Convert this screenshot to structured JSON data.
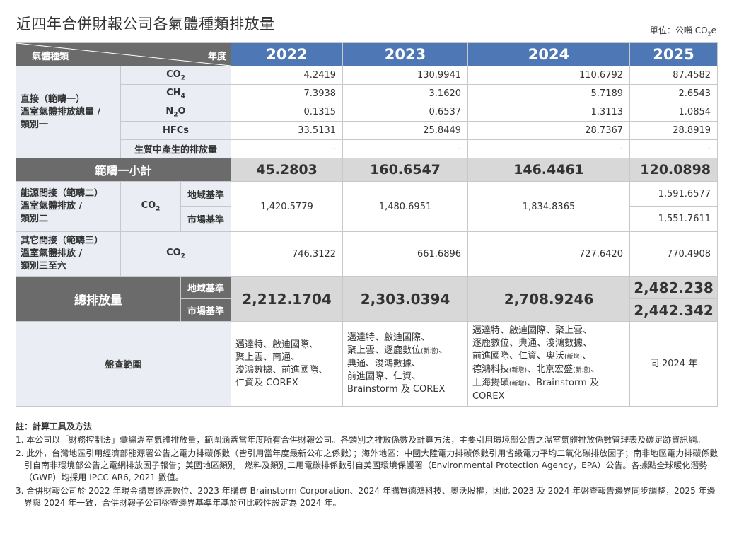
{
  "title": "近四年合併財報公司各氣體種類排放量",
  "unit": {
    "prefix": "單位：公噸 CO",
    "sub": "2",
    "suffix": "e"
  },
  "header": {
    "corner_left": "氣體種類",
    "corner_right": "年度",
    "years": [
      "2022",
      "2023",
      "2024",
      "2025"
    ]
  },
  "scope1": {
    "label_lines": [
      "直接（範疇一）",
      "溫室氣體排放總量 /",
      "類別一"
    ],
    "rows": [
      {
        "gas": "CO",
        "gas_sub": "2",
        "values": [
          "4.2419",
          "130.9941",
          "110.6792",
          "87.4582"
        ]
      },
      {
        "gas": "CH",
        "gas_sub": "4",
        "values": [
          "7.3938",
          "3.1620",
          "5.7189",
          "2.6543"
        ]
      },
      {
        "gas": "N",
        "gas_sub": "2",
        "gas_suffix": "O",
        "values": [
          "0.1315",
          "0.6537",
          "1.3113",
          "1.0854"
        ]
      },
      {
        "gas": "HFCs",
        "gas_sub": "",
        "values": [
          "33.5131",
          "25.8449",
          "28.7367",
          "28.8919"
        ]
      },
      {
        "gas": "生質中產生的排放量",
        "gas_sub": "",
        "values": [
          "-",
          "-",
          "-",
          "-"
        ]
      }
    ],
    "subtotal_label": "範疇一小計",
    "subtotal_values": [
      "45.2803",
      "160.6547",
      "146.4461",
      "120.0898"
    ]
  },
  "scope2": {
    "label_lines": [
      "能源間接（範疇二）",
      "溫室氣體排放 /",
      "類別二"
    ],
    "gas": "CO",
    "gas_sub": "2",
    "basis_location": "地域基準",
    "basis_market": "市場基準",
    "values": [
      "1,420.5779",
      "1,480.6951",
      "1,834.8365"
    ],
    "value_2025_location": "1,591.6577",
    "value_2025_market": "1,551.7611"
  },
  "scope3": {
    "label_lines": [
      "其它間接（範疇三）",
      "溫室氣體排放 /",
      "類別三至六"
    ],
    "gas": "CO",
    "gas_sub": "2",
    "values": [
      "746.3122",
      "661.6896",
      "727.6420",
      "770.4908"
    ]
  },
  "total": {
    "label": "總排放量",
    "basis_location": "地域基準",
    "basis_market": "市場基準",
    "values": [
      "2,212.1704",
      "2,303.0394",
      "2,708.9246"
    ],
    "value_2025_location": "2,482.238",
    "value_2025_market": "2,442.342"
  },
  "scope_range": {
    "label": "盤查範圍",
    "y2022": [
      "邁達特、啟迪國際、",
      "聚上雲、南通、",
      "浚鴻數據、前進國際、",
      "仁資及 COREX"
    ],
    "y2023": [
      [
        {
          "t": "邁達特、啟迪國際、"
        }
      ],
      [
        {
          "t": "聚上雲、逐鹿數位"
        },
        {
          "t": "(新增)",
          "s": 1
        },
        {
          "t": "、"
        }
      ],
      [
        {
          "t": "典通、浚鴻數據、"
        }
      ],
      [
        {
          "t": "前進國際、仁資、"
        }
      ],
      [
        {
          "t": "Brainstorm 及 COREX"
        }
      ]
    ],
    "y2024": [
      [
        {
          "t": "邁達特、啟迪國際、聚上雲、"
        }
      ],
      [
        {
          "t": "逐鹿數位、典通、浚鴻數據、"
        }
      ],
      [
        {
          "t": "前進國際、仁資、奧沃"
        },
        {
          "t": "(新增)",
          "s": 1
        },
        {
          "t": "、"
        }
      ],
      [
        {
          "t": "德鴻科技"
        },
        {
          "t": "(新增)",
          "s": 1
        },
        {
          "t": "、北京宏盛"
        },
        {
          "t": "(新增)",
          "s": 1
        },
        {
          "t": "、"
        }
      ],
      [
        {
          "t": "上海揚碩"
        },
        {
          "t": "(新增)",
          "s": 1
        },
        {
          "t": "、Brainstorm 及"
        }
      ],
      [
        {
          "t": "COREX"
        }
      ]
    ],
    "y2025": "同 2024 年"
  },
  "notes": {
    "title": "註：計算工具及方法",
    "items": [
      "1. 本公司以「財務控制法」彙總溫室氣體排放量，範圍涵蓋當年度所有合併財報公司。各類別之排放係數及計算方法，主要引用環境部公告之溫室氣體排放係數管理表及碳足跡資訊網。",
      "2. 此外，台灣地區引用經濟部能源署公告之電力排碳係數（皆引用當年度最新公布之係數）；海外地區：中國大陸電力排碳係數引用省級電力平均二氧化碳排放因子；南非地區電力排碳係數引自南非環境部公告之電網排放因子報告；美國地區類別一燃料及類別二用電碳排係數引自美國環境保護署（Environmental Protection Agency，EPA）公告。各據點全球暖化潛勢（GWP）均採用 IPCC AR6, 2021 數值。",
      "3. 合併財報公司於 2022 年現金購買逐鹿數位、2023 年購買 Brainstorm Corporation、2024 年購買德鴻科技、奧沃股權，因此 2023 及 2024 年盤查報告邊界同步調整，2025 年邊界與 2024 年一致，合併財報子公司盤查邊界基準年基於可比較性設定為 2024 年。"
    ]
  }
}
